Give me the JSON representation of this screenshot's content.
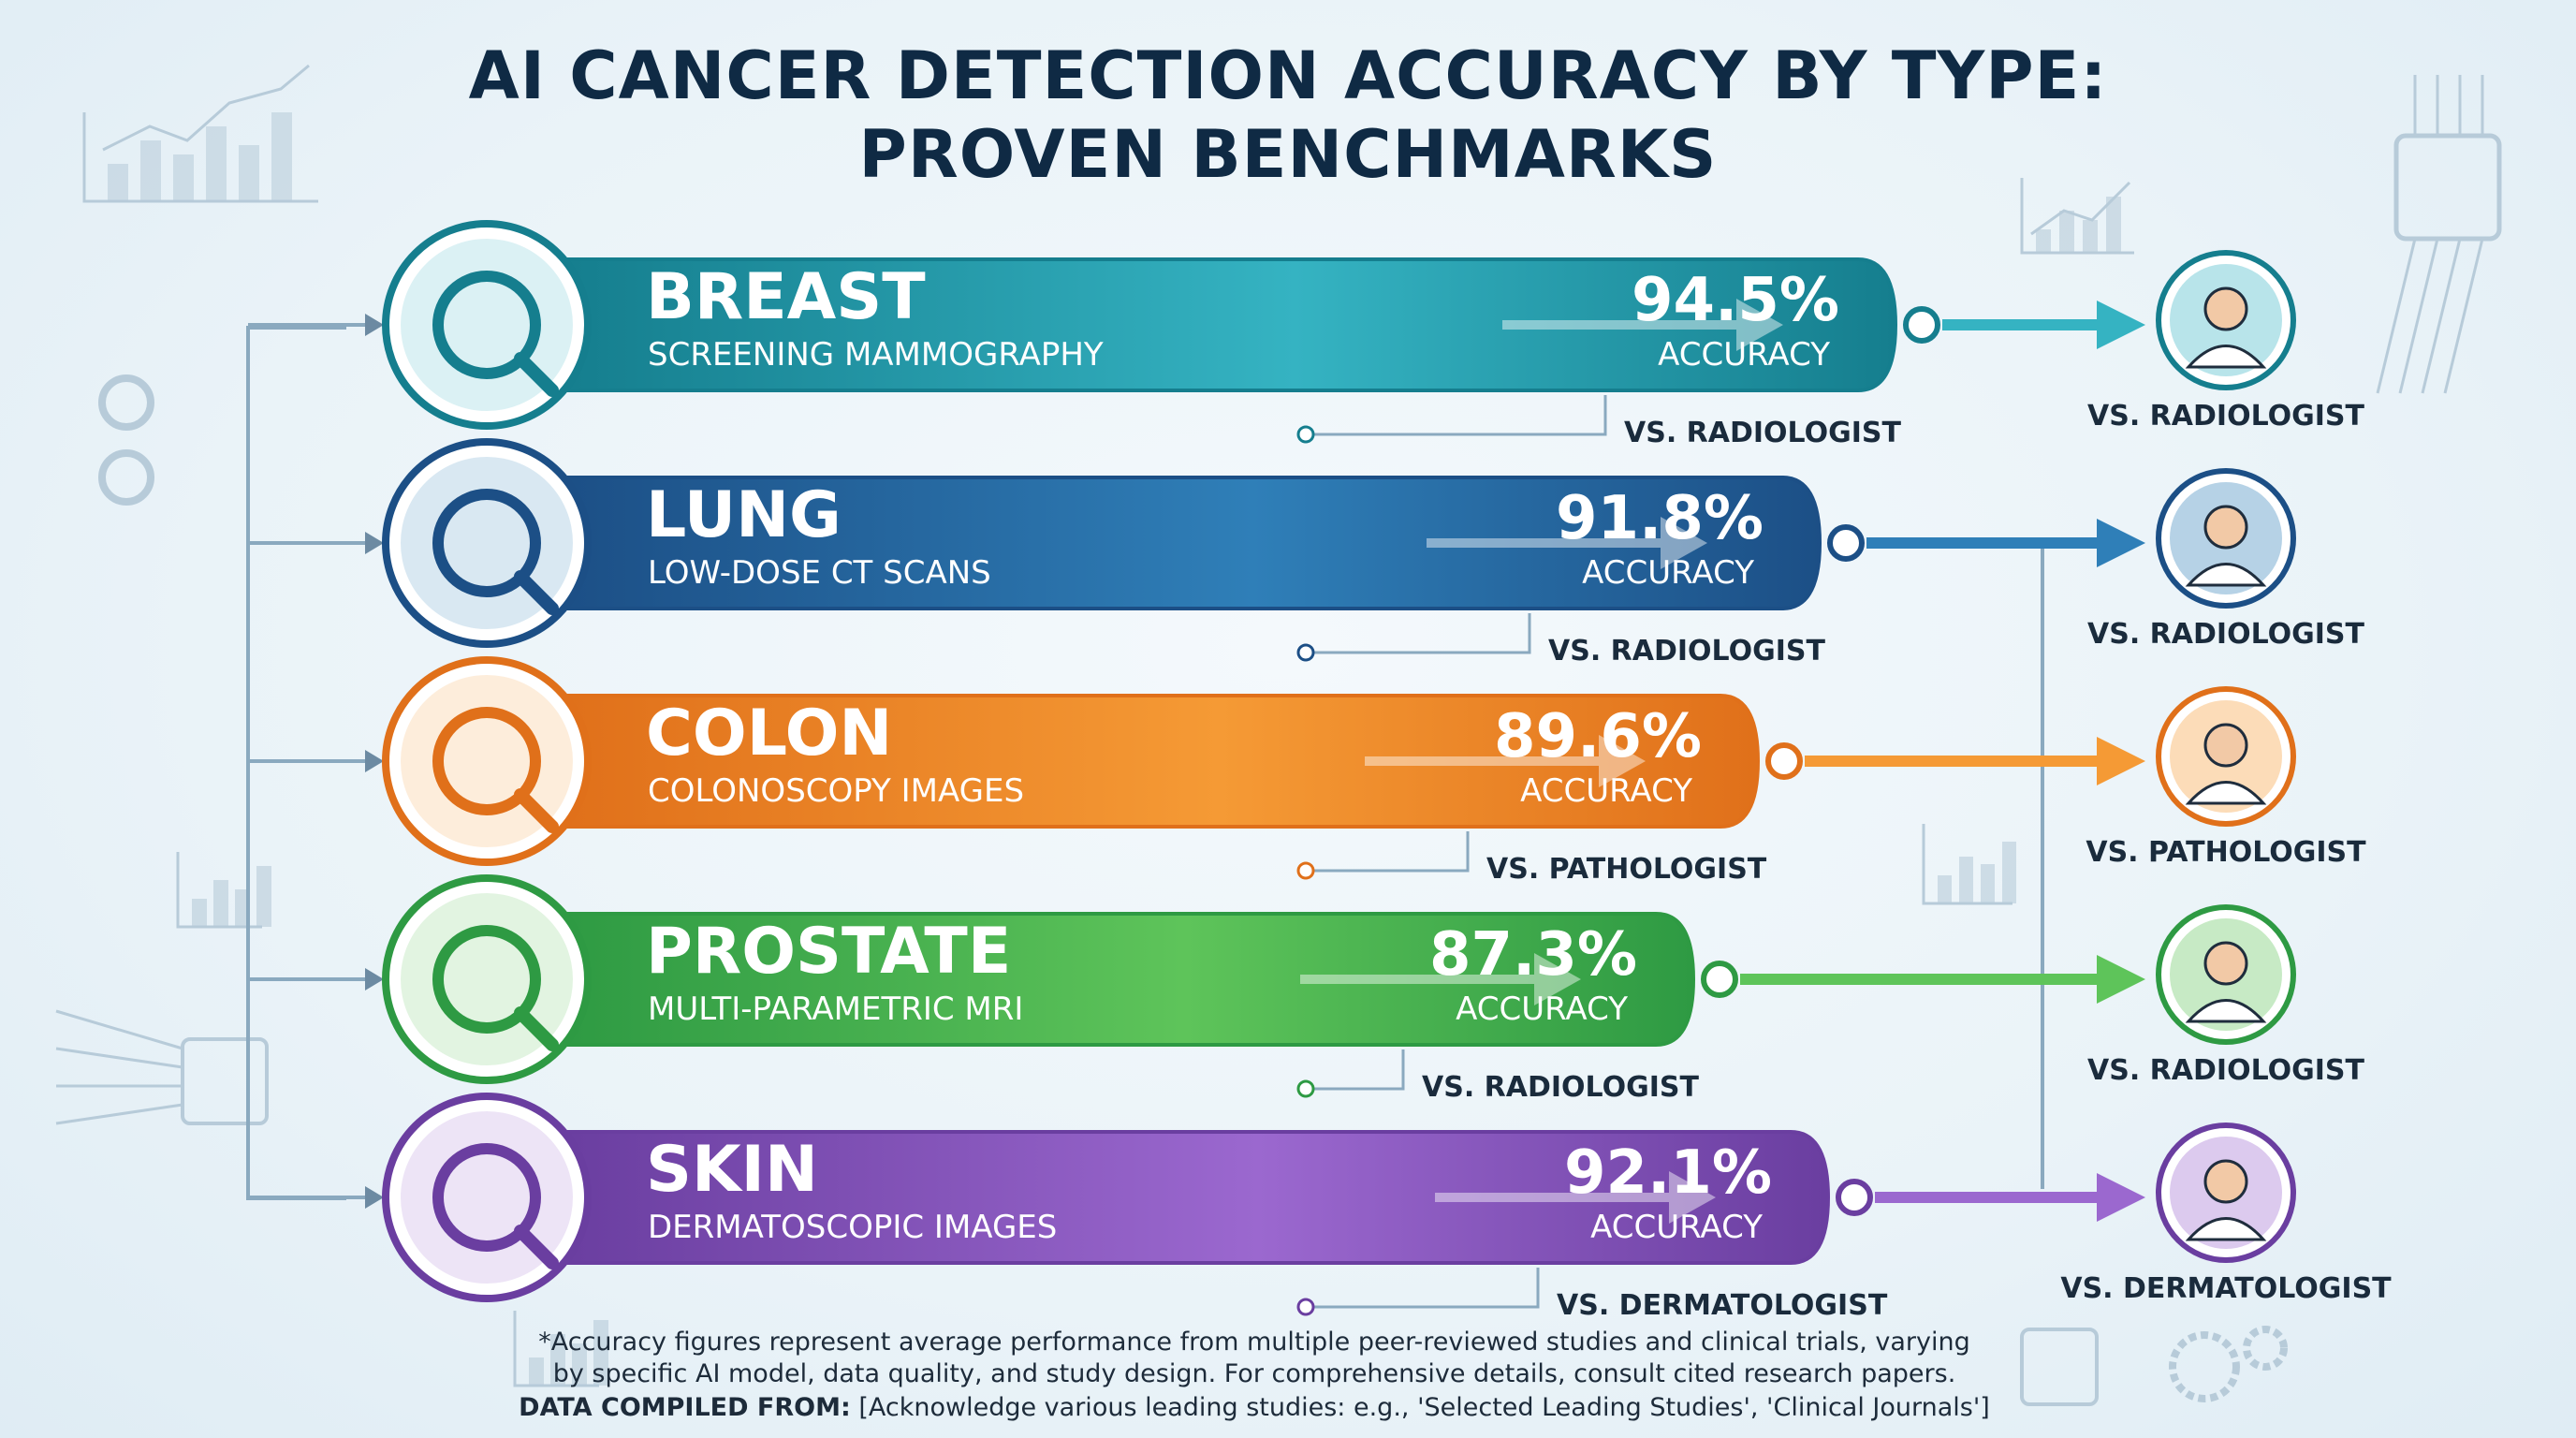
{
  "title": {
    "line1": "AI CANCER DETECTION ACCURACY BY TYPE:",
    "line2": "PROVEN BENCHMARKS"
  },
  "chart_data": {
    "type": "bar",
    "categories": [
      "BREAST",
      "LUNG",
      "COLON",
      "PROSTATE",
      "SKIN"
    ],
    "values": [
      94.5,
      91.8,
      89.6,
      87.3,
      92.1
    ],
    "series": [
      {
        "values": [
          94.5,
          91.8,
          89.6,
          87.3,
          92.1
        ]
      }
    ],
    "value_labels": [
      "94.5%",
      "91.8%",
      "89.6%",
      "87.3%",
      "92.1%"
    ],
    "metric_label": "ACCURACY",
    "rows": [
      {
        "name": "BREAST",
        "subtitle": "SCREENING MAMMOGRAPHY",
        "value": 94.5,
        "value_label": "94.5%",
        "metric": "ACCURACY",
        "comparison": "VS. RADIOLOGIST",
        "color": "#157e8e",
        "color_light": "#35b3c2",
        "icon": "breast-cancer-ribbon-icon",
        "specialist_icon": "radiologist-icon"
      },
      {
        "name": "LUNG",
        "subtitle": "LOW-DOSE CT SCANS",
        "value": 91.8,
        "value_label": "91.8%",
        "metric": "ACCURACY",
        "comparison": "VS. RADIOLOGIST",
        "color": "#1c4f86",
        "color_light": "#2f7fb8",
        "icon": "lungs-icon",
        "specialist_icon": "radiologist-icon"
      },
      {
        "name": "COLON",
        "subtitle": "COLONOSCOPY IMAGES",
        "value": 89.6,
        "value_label": "89.6%",
        "metric": "ACCURACY",
        "comparison": "VS. PATHOLOGIST",
        "color": "#e0701a",
        "color_light": "#f59a35",
        "icon": "colon-icon",
        "specialist_icon": "pathologist-microscope-icon"
      },
      {
        "name": "PROSTATE",
        "subtitle": "MULTI-PARAMETRIC MRI",
        "value": 87.3,
        "value_label": "87.3%",
        "metric": "ACCURACY",
        "comparison": "VS. RADIOLOGIST",
        "color": "#2e9a43",
        "color_light": "#5ec45a",
        "icon": "prostate-icon",
        "specialist_icon": "radiologist-icon"
      },
      {
        "name": "SKIN",
        "subtitle": "DERMATOSCOPIC IMAGES",
        "value": 92.1,
        "value_label": "92.1%",
        "metric": "ACCURACY",
        "comparison": "VS. DERMATOLOGIST",
        "color": "#6a3ea0",
        "color_light": "#9b68cf",
        "icon": "skin-magnifier-icon",
        "specialist_icon": "dermatologist-icon"
      }
    ]
  },
  "footer": {
    "note_line1": "*Accuracy figures represent average performance from multiple peer-reviewed studies and clinical trials, varying",
    "note_line2": "by specific AI model, data quality, and study design. For comprehensive details, consult cited research papers.",
    "sources_label": "DATA COMPILED FROM:",
    "sources_text": " [Acknowledge various leading studies: e.g., 'Selected Leading Studies', 'Clinical Journals']"
  }
}
